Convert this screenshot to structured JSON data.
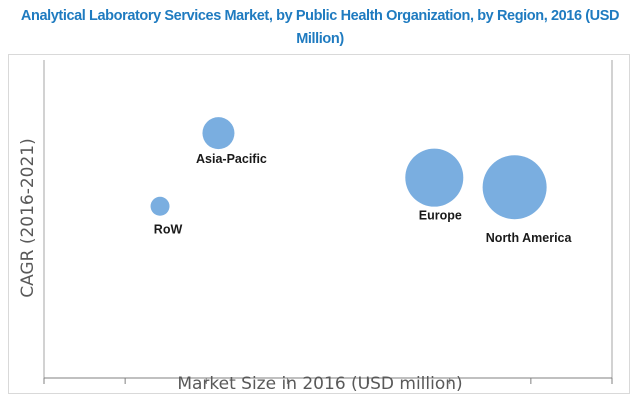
{
  "chart_data": {
    "type": "scatter",
    "subtype": "bubble",
    "title": "Analytical Laboratory Services Market, by Public Health Organization, by Region, 2016 (USD Million)",
    "xlabel": "Market Size in 2016 (USD million)",
    "ylabel": "CAGR  (2016-2021)",
    "xlim": [
      0,
      7
    ],
    "ylim": [
      0,
      10
    ],
    "x_tick_labels_shown": false,
    "y_tick_labels_shown": false,
    "grid": false,
    "legend": "none",
    "bubble_color": "#7aaee0",
    "points": [
      {
        "label": "Asia-Pacific",
        "x": 2.15,
        "y": 7.7,
        "size": 256
      },
      {
        "label": "RoW",
        "x": 1.43,
        "y": 5.4,
        "size": 90
      },
      {
        "label": "Europe",
        "x": 4.81,
        "y": 6.3,
        "size": 841
      },
      {
        "label": "North America",
        "x": 5.8,
        "y": 6.0,
        "size": 1024
      }
    ]
  }
}
